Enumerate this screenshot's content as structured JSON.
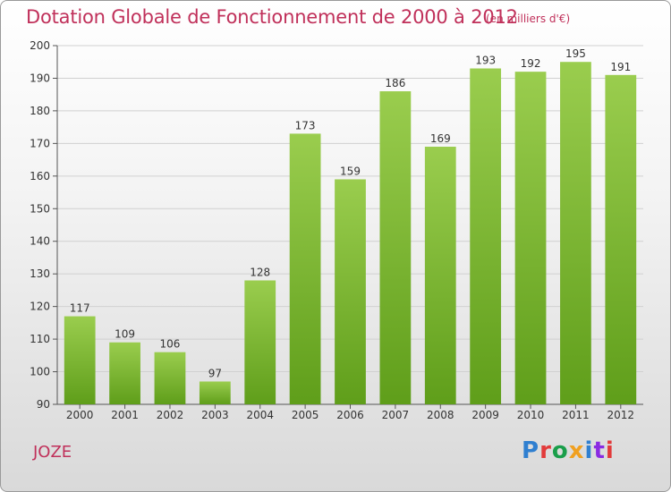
{
  "header": {
    "title": "Dotation Globale de Fonctionnement de 2000 à 2012",
    "subtitle": "(en milliers d'€)"
  },
  "footer": {
    "commune": "JOZE",
    "logo_text": "Proxiti",
    "logo_colors": [
      "#2f7fd0",
      "#e23b3b",
      "#1a9e4a",
      "#f0a020",
      "#2f7fd0",
      "#8a2be2",
      "#e23b3b"
    ]
  },
  "chart_data": {
    "type": "bar",
    "title": "Dotation Globale de Fonctionnement de 2000 à 2012",
    "subtitle": "(en milliers d'€)",
    "categories": [
      "2000",
      "2001",
      "2002",
      "2003",
      "2004",
      "2005",
      "2006",
      "2007",
      "2008",
      "2009",
      "2010",
      "2011",
      "2012"
    ],
    "values": [
      117,
      109,
      106,
      97,
      128,
      173,
      159,
      186,
      169,
      193,
      192,
      195,
      191
    ],
    "ylim": [
      90,
      200
    ],
    "yticks": [
      90,
      100,
      110,
      120,
      130,
      140,
      150,
      160,
      170,
      180,
      190,
      200
    ],
    "grid": true,
    "bar_color_top": "#9acd4e",
    "bar_color_bottom": "#5f9e1a",
    "grid_color": "#d0d0d0",
    "label_color": "#333333"
  }
}
